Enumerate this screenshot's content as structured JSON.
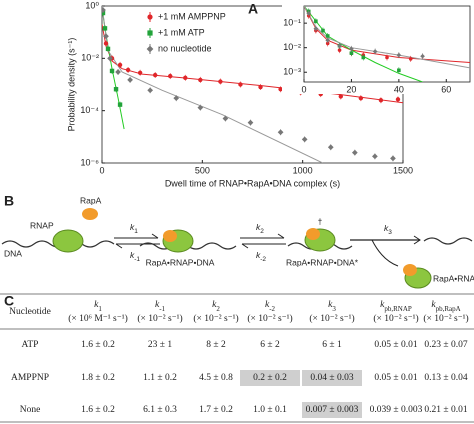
{
  "panel_labels": [
    "A",
    "B",
    "C"
  ],
  "chart_data": [
    {
      "type": "scatter",
      "xlabel": "Dwell time of RNAP•RapA•DNA complex (s)",
      "ylabel": "Probability density (s⁻¹)",
      "xlim": [
        0,
        1500
      ],
      "xticks": [
        0,
        500,
        1000,
        1500
      ],
      "ylim": [
        1e-06,
        1
      ],
      "yticks": [
        {
          "value": 1,
          "label": "10⁰"
        },
        {
          "value": 0.01,
          "label": "10⁻²"
        },
        {
          "value": 0.0001,
          "label": "10⁻⁴"
        },
        {
          "value": 1e-06,
          "label": "10⁻⁶"
        }
      ],
      "log_y": true,
      "legend": "upper left",
      "series": [
        {
          "name": "+1 mM AMPPNP",
          "color": "#e0262a",
          "x": [
            20,
            50,
            90,
            130,
            190,
            265,
            340,
            415,
            490,
            590,
            690,
            790,
            890,
            990,
            1090,
            1190,
            1290,
            1390,
            1475
          ],
          "values": [
            0.037,
            0.01,
            0.0056,
            0.0036,
            0.0028,
            0.0023,
            0.0021,
            0.0018,
            0.0015,
            0.0013,
            0.001,
            0.0008,
            0.00066,
            0.0005,
            0.00043,
            0.00035,
            0.0003,
            0.00025,
            0.00027
          ]
        },
        {
          "name": "+1 mM ATP",
          "color": "#22a33a",
          "x": [
            5,
            15,
            30,
            50,
            70,
            90
          ],
          "values": [
            0.54,
            0.14,
            0.023,
            0.0033,
            0.00066,
            0.00017
          ]
        },
        {
          "name": "no nucleotide",
          "color": "#777777",
          "x": [
            5,
            20,
            40,
            80,
            140,
            240,
            370,
            490,
            615,
            740,
            890,
            1010,
            1140,
            1260,
            1360,
            1450
          ],
          "values": [
            0.7,
            0.07,
            0.01,
            0.003,
            0.0015,
            0.0006,
            0.0003,
            0.00013,
            5e-05,
            3.5e-05,
            1.5e-05,
            8e-06,
            4e-06,
            2.5e-06,
            1.8e-06,
            1.5e-06
          ]
        }
      ],
      "fits": [
        {
          "color": "#e0262a",
          "x": [
            0,
            20,
            50,
            100,
            200,
            400,
            800,
            1200,
            1500
          ],
          "values": [
            0.2,
            0.03,
            0.008,
            0.004,
            0.0025,
            0.0018,
            0.0009,
            0.0004,
            0.0002
          ]
        },
        {
          "color": "#22cc22",
          "x": [
            0,
            20,
            50,
            80,
            110
          ],
          "values": [
            0.8,
            0.08,
            0.004,
            0.0003,
            2e-05
          ]
        },
        {
          "color": "#999999",
          "x": [
            0,
            30,
            100,
            300,
            600,
            1100
          ],
          "values": [
            1,
            0.02,
            0.003,
            0.0006,
            7e-05,
            1e-06
          ]
        }
      ]
    },
    {
      "type": "scatter",
      "xlim": [
        0,
        70
      ],
      "xticks": [
        0,
        20,
        40,
        60
      ],
      "ylim": [
        0.0004,
        0.5
      ],
      "yticks": [
        {
          "value": 0.001,
          "label": "10⁻³"
        },
        {
          "value": 0.01,
          "label": "10⁻²"
        },
        {
          "value": 0.1,
          "label": "10⁻¹"
        }
      ],
      "log_y": true,
      "series": [
        {
          "color": "#e0262a",
          "x": [
            2,
            5,
            10,
            15,
            20,
            25,
            35,
            45
          ],
          "values": [
            0.2,
            0.05,
            0.015,
            0.008,
            0.006,
            0.005,
            0.004,
            0.0035
          ]
        },
        {
          "color": "#22a33a",
          "x": [
            2,
            5,
            8,
            10,
            15,
            20,
            25,
            40
          ],
          "values": [
            0.3,
            0.12,
            0.05,
            0.03,
            0.012,
            0.006,
            0.004,
            0.0012
          ]
        },
        {
          "color": "#777777",
          "x": [
            2,
            5,
            10,
            15,
            20,
            30,
            40,
            50
          ],
          "values": [
            0.25,
            0.06,
            0.02,
            0.012,
            0.009,
            0.007,
            0.005,
            0.0045
          ]
        }
      ],
      "fits": [
        {
          "color": "#e0262a",
          "x": [
            0,
            5,
            10,
            20,
            40,
            70
          ],
          "values": [
            0.5,
            0.06,
            0.02,
            0.008,
            0.004,
            0.0025
          ]
        },
        {
          "color": "#22cc22",
          "x": [
            0,
            10,
            20,
            30,
            40,
            50
          ],
          "values": [
            0.5,
            0.03,
            0.008,
            0.0025,
            0.0009,
            0.0004
          ]
        },
        {
          "color": "#999999",
          "x": [
            0,
            5,
            10,
            20,
            40,
            70
          ],
          "values": [
            0.5,
            0.07,
            0.025,
            0.01,
            0.005,
            0.0015
          ]
        }
      ]
    }
  ],
  "diagram": {
    "nodes": [
      {
        "label": "RNAP"
      },
      {
        "label": "RapA"
      },
      {
        "label": "DNA"
      },
      {
        "label": "RapA•RNAP•DNA"
      },
      {
        "label": "RapA•RNAP•DNA*"
      },
      {
        "label": "†"
      },
      {
        "label": "RapA•RNAP"
      }
    ],
    "rates": [
      {
        "symbol": "k",
        "sub": "1"
      },
      {
        "symbol": "k",
        "sub": "-1"
      },
      {
        "symbol": "k",
        "sub": "2"
      },
      {
        "symbol": "k",
        "sub": "-2"
      },
      {
        "symbol": "k",
        "sub": "3"
      }
    ]
  },
  "table": {
    "header": [
      {
        "text": "Nucleotide"
      },
      {
        "symbol": "k",
        "sub": "1",
        "unit": "(× 10⁶ M⁻¹ s⁻¹)"
      },
      {
        "symbol": "k",
        "sub": "-1",
        "unit": "(× 10⁻² s⁻¹)"
      },
      {
        "symbol": "k",
        "sub": "2",
        "unit": "(× 10⁻² s⁻¹)"
      },
      {
        "symbol": "k",
        "sub": "-2",
        "unit": "(× 10⁻² s⁻¹)"
      },
      {
        "symbol": "k",
        "sub": "3",
        "unit": "(× 10⁻² s⁻¹)"
      },
      {
        "symbol": "k",
        "sub": "pb,RNAP",
        "unit": "(× 10⁻² s⁻¹)"
      },
      {
        "symbol": "k",
        "sub": "pb,RapA",
        "unit": "(× 10⁻² s⁻¹)"
      }
    ],
    "rows": [
      [
        "ATP",
        "1.6 ± 0.2",
        "23 ± 1",
        "8 ± 2",
        "6 ± 2",
        "6 ± 1",
        "0.05 ± 0.01",
        "0.23 ± 0.07"
      ],
      [
        "AMPPNP",
        "1.8 ± 0.2",
        "1.1 ± 0.2",
        "4.5 ± 0.8",
        "0.2 ± 0.2",
        "0.04 ± 0.03",
        "0.05 ± 0.01",
        "0.13 ± 0.04"
      ],
      [
        "None",
        "1.6 ± 0.2",
        "6.1 ± 0.3",
        "1.7 ± 0.2",
        "1.0 ± 0.1",
        "0.007 ± 0.003",
        "0.039 ± 0.003",
        "0.21 ± 0.01"
      ]
    ],
    "highlight": [
      [
        1,
        4
      ],
      [
        1,
        5
      ],
      [
        2,
        5
      ]
    ]
  }
}
